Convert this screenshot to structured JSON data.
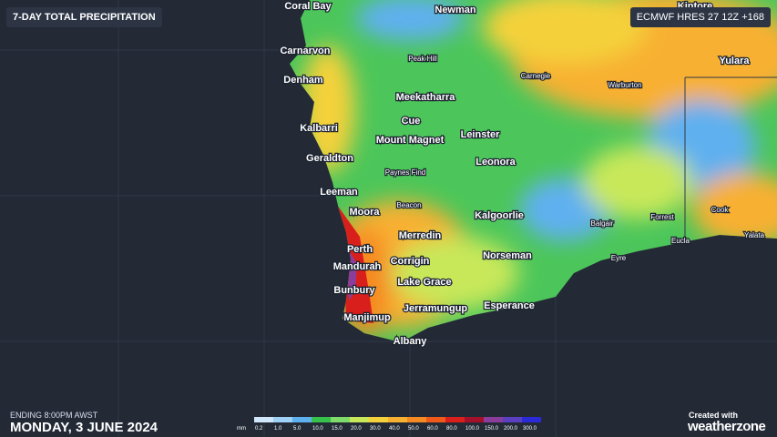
{
  "header": {
    "title": "7-DAY TOTAL PRECIPITATION",
    "model": "ECMWF HRES 27 12Z +168"
  },
  "towns": [
    "Coral Bay",
    "Newman",
    "Carnarvon",
    "Denham",
    "Meekatharra",
    "Cue",
    "Kalbarri",
    "Leinster",
    "Mount Magnet",
    "Geraldton",
    "Leonora",
    "Leeman",
    "Moora",
    "Kalgoorlie",
    "Merredin",
    "Perth",
    "Norseman",
    "Corrigin",
    "Mandurah",
    "Lake Grace",
    "Bunbury",
    "Jerramungup",
    "Esperance",
    "Manjimup",
    "Albany",
    "Yulara",
    "Kintore"
  ],
  "minor_towns": [
    "Peak Hill",
    "Carnegie",
    "Warburton",
    "Paynes Find",
    "Beacon",
    "Balgair",
    "Forrest",
    "Cook",
    "Eyre",
    "Eucla",
    "Yalata"
  ],
  "footer": {
    "ending": "ENDING 8:00PM AWST",
    "date": "MONDAY, 3 JUNE 2024",
    "created": "Created with",
    "brand": "weatherzone"
  },
  "legend": {
    "unit": "mm",
    "items": [
      {
        "label": "0.2",
        "color": "#cfe6fb"
      },
      {
        "label": "1.0",
        "color": "#9fd1f7"
      },
      {
        "label": "5.0",
        "color": "#5fb0ef"
      },
      {
        "label": "10.0",
        "color": "#36c24a"
      },
      {
        "label": "15.0",
        "color": "#7fdc6a"
      },
      {
        "label": "20.0",
        "color": "#c8e85a"
      },
      {
        "label": "30.0",
        "color": "#f4d13a"
      },
      {
        "label": "40.0",
        "color": "#f8b030"
      },
      {
        "label": "50.0",
        "color": "#f58a22"
      },
      {
        "label": "60.0",
        "color": "#ef5a1a"
      },
      {
        "label": "80.0",
        "color": "#d81f1c"
      },
      {
        "label": "100.0",
        "color": "#a3102a"
      },
      {
        "label": "150.0",
        "color": "#8a3d9a"
      },
      {
        "label": "200.0",
        "color": "#5a3fc0"
      },
      {
        "label": "300.0",
        "color": "#2b2ad8"
      }
    ]
  }
}
